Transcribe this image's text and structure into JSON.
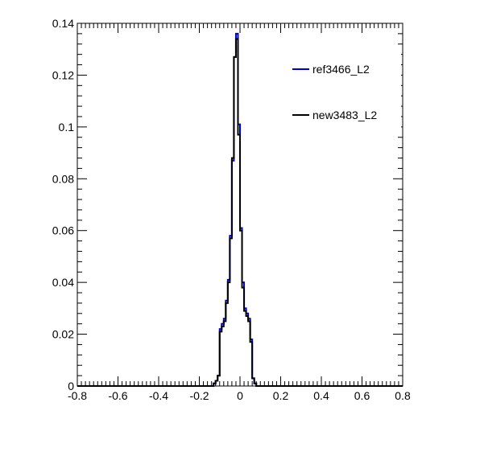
{
  "chart_data": {
    "type": "line",
    "title": "",
    "xlabel": "",
    "ylabel": "",
    "xlim": [
      -0.8,
      0.8
    ],
    "ylim": [
      0,
      0.14
    ],
    "x_ticks": [
      -0.8,
      -0.6,
      -0.4,
      -0.2,
      0,
      0.2,
      0.4,
      0.6,
      0.8
    ],
    "x_tick_labels": [
      "-0.8",
      "-0.6",
      "-0.4",
      "-0.2",
      "0",
      "0.2",
      "0.4",
      "0.6",
      "0.8"
    ],
    "y_ticks": [
      0,
      0.02,
      0.04,
      0.06,
      0.08,
      0.1,
      0.12,
      0.14
    ],
    "y_tick_labels": [
      "0",
      "0.02",
      "0.04",
      "0.06",
      "0.08",
      "0.1",
      "0.12",
      "0.14"
    ],
    "grid": false,
    "legend_position": "top-right",
    "bin_edges": [
      -0.14,
      -0.13,
      -0.12,
      -0.11,
      -0.1,
      -0.09,
      -0.08,
      -0.07,
      -0.06,
      -0.05,
      -0.04,
      -0.03,
      -0.02,
      -0.01,
      0.0,
      0.01,
      0.02,
      0.03,
      0.04,
      0.05,
      0.06,
      0.07,
      0.08,
      0.09,
      0.1,
      0.11,
      0.12,
      0.13,
      0.14
    ],
    "series": [
      {
        "name": "ref3466_L2",
        "color": "#0000cc",
        "values": [
          0.0,
          0.001,
          0.002,
          0.004,
          0.022,
          0.024,
          0.026,
          0.033,
          0.041,
          0.058,
          0.087,
          0.127,
          0.136,
          0.101,
          0.061,
          0.04,
          0.03,
          0.028,
          0.026,
          0.018,
          0.003,
          0.001,
          0.0,
          0.0,
          0.0,
          0.0,
          0.0,
          0.0
        ]
      },
      {
        "name": "new3483_L2",
        "color": "#000000",
        "values": [
          0.0,
          0.001,
          0.002,
          0.004,
          0.021,
          0.023,
          0.025,
          0.032,
          0.04,
          0.057,
          0.088,
          0.127,
          0.134,
          0.097,
          0.06,
          0.038,
          0.029,
          0.027,
          0.025,
          0.017,
          0.003,
          0.001,
          0.0,
          0.0,
          0.0,
          0.0,
          0.0,
          0.0
        ]
      }
    ]
  }
}
